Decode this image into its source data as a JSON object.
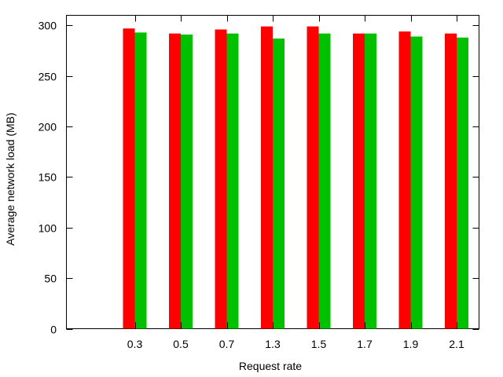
{
  "chart_data": {
    "type": "bar",
    "xlabel": "Request rate",
    "ylabel": "Average network load (MB)",
    "categories": [
      "0.3",
      "0.5",
      "0.7",
      "1.3",
      "1.5",
      "1.7",
      "1.9",
      "2.1"
    ],
    "series": [
      {
        "color": "#ff0000",
        "values": [
          297,
          292,
          296,
          299,
          299,
          292,
          294,
          292
        ]
      },
      {
        "color": "#00c000",
        "values": [
          293,
          291,
          292,
          287,
          292,
          292,
          289,
          288
        ]
      }
    ],
    "ylim": [
      0,
      310
    ],
    "yticks": [
      0,
      50,
      100,
      150,
      200,
      250,
      300
    ],
    "grid": false,
    "legend": "none"
  }
}
